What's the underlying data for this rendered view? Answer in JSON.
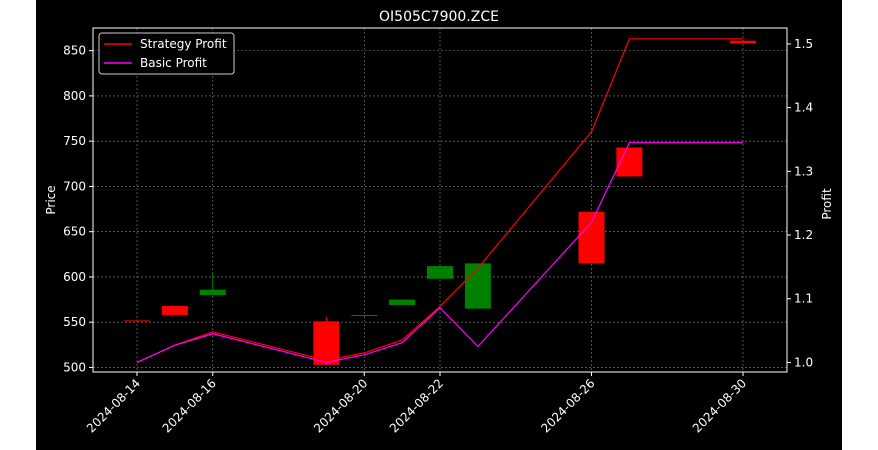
{
  "chart_data": {
    "type": "candlestick+line",
    "title": "OI505C7900.ZCE",
    "xlabel": "",
    "ylabel_left": "Price",
    "ylabel_right": "Profit",
    "x_ticks": [
      "2024-08-14",
      "2024-08-16",
      "2024-08-20",
      "2024-08-22",
      "2024-08-26",
      "2024-08-30"
    ],
    "y_left_ticks": [
      500,
      550,
      600,
      650,
      700,
      750,
      800,
      850
    ],
    "y_right_ticks": [
      "1.0",
      "1.1",
      "1.2",
      "1.3",
      "1.4",
      "1.5"
    ],
    "y_left_lim": [
      495,
      875
    ],
    "y_right_lim": [
      0.985,
      1.525
    ],
    "grid": true,
    "legend_position": "top-left",
    "dates": [
      "2024-08-14",
      "2024-08-15",
      "2024-08-16",
      "2024-08-19",
      "2024-08-20",
      "2024-08-21",
      "2024-08-22",
      "2024-08-23",
      "2024-08-26",
      "2024-08-27",
      "2024-08-30"
    ],
    "candles": [
      {
        "date": "2024-08-14",
        "open": 552,
        "close": 552,
        "high": 553,
        "low": 552
      },
      {
        "date": "2024-08-15",
        "open": 568,
        "close": 558,
        "high": 568,
        "low": 558
      },
      {
        "date": "2024-08-16",
        "open": 580,
        "close": 586,
        "high": 604,
        "low": 580
      },
      {
        "date": "2024-08-19",
        "open": 551,
        "close": 503,
        "high": 556,
        "low": 503
      },
      {
        "date": "2024-08-20",
        "open": 558,
        "close": 558,
        "high": 558,
        "low": 558
      },
      {
        "date": "2024-08-21",
        "open": 569,
        "close": 575,
        "high": 575,
        "low": 569
      },
      {
        "date": "2024-08-22",
        "open": 598,
        "close": 612,
        "high": 612,
        "low": 598
      },
      {
        "date": "2024-08-23",
        "open": 565,
        "close": 615,
        "high": 615,
        "low": 565
      },
      {
        "date": "2024-08-26",
        "open": 672,
        "close": 615,
        "high": 672,
        "low": 615
      },
      {
        "date": "2024-08-27",
        "open": 743,
        "close": 711,
        "high": 743,
        "low": 711
      },
      {
        "date": "2024-08-30",
        "open": 861,
        "close": 858,
        "high": 861,
        "low": 858
      }
    ],
    "series": [
      {
        "name": "Strategy Profit",
        "color": "#ff0000",
        "values": [
          1.0,
          1.027,
          1.048,
          1.003,
          1.015,
          1.035,
          1.088,
          1.148,
          1.362,
          1.508,
          1.508
        ]
      },
      {
        "name": "Basic Profit",
        "color": "#ff00ff",
        "values": [
          1.0,
          1.027,
          1.045,
          1.0,
          1.012,
          1.031,
          1.086,
          1.025,
          1.22,
          1.345,
          1.345
        ]
      }
    ],
    "colors": {
      "up": "#008000",
      "down": "#ff0000",
      "background": "#000000",
      "axes": "#ffffff"
    }
  }
}
